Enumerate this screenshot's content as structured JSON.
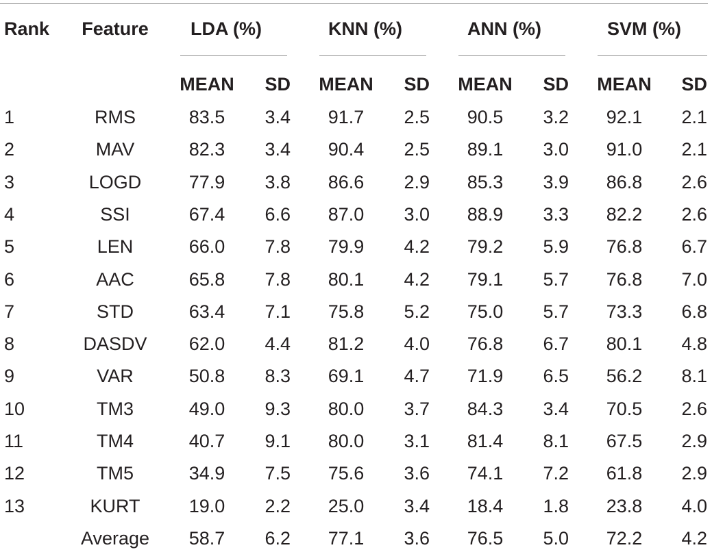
{
  "table": {
    "header": {
      "rank": "Rank",
      "feature": "Feature",
      "groups": [
        "LDA (%)",
        "KNN (%)",
        "ANN (%)",
        "SVM (%)"
      ],
      "sub": [
        "MEAN",
        "SD",
        "MEAN",
        "SD",
        "MEAN",
        "SD",
        "MEAN",
        "SD"
      ]
    },
    "rows": [
      {
        "rank": "1",
        "feature": "RMS",
        "values": [
          "83.5",
          "3.4",
          "91.7",
          "2.5",
          "90.5",
          "3.2",
          "92.1",
          "2.1"
        ]
      },
      {
        "rank": "2",
        "feature": "MAV",
        "values": [
          "82.3",
          "3.4",
          "90.4",
          "2.5",
          "89.1",
          "3.0",
          "91.0",
          "2.1"
        ]
      },
      {
        "rank": "3",
        "feature": "LOGD",
        "values": [
          "77.9",
          "3.8",
          "86.6",
          "2.9",
          "85.3",
          "3.9",
          "86.8",
          "2.6"
        ]
      },
      {
        "rank": "4",
        "feature": "SSI",
        "values": [
          "67.4",
          "6.6",
          "87.0",
          "3.0",
          "88.9",
          "3.3",
          "82.2",
          "2.6"
        ]
      },
      {
        "rank": "5",
        "feature": "LEN",
        "values": [
          "66.0",
          "7.8",
          "79.9",
          "4.2",
          "79.2",
          "5.9",
          "76.8",
          "6.7"
        ]
      },
      {
        "rank": "6",
        "feature": "AAC",
        "values": [
          "65.8",
          "7.8",
          "80.1",
          "4.2",
          "79.1",
          "5.7",
          "76.8",
          "7.0"
        ]
      },
      {
        "rank": "7",
        "feature": "STD",
        "values": [
          "63.4",
          "7.1",
          "75.8",
          "5.2",
          "75.0",
          "5.7",
          "73.3",
          "6.8"
        ]
      },
      {
        "rank": "8",
        "feature": "DASDV",
        "values": [
          "62.0",
          "4.4",
          "81.2",
          "4.0",
          "76.8",
          "6.7",
          "80.1",
          "4.8"
        ]
      },
      {
        "rank": "9",
        "feature": "VAR",
        "values": [
          "50.8",
          "8.3",
          "69.1",
          "4.7",
          "71.9",
          "6.5",
          "56.2",
          "8.1"
        ]
      },
      {
        "rank": "10",
        "feature": "TM3",
        "values": [
          "49.0",
          "9.3",
          "80.0",
          "3.7",
          "84.3",
          "3.4",
          "70.5",
          "2.6"
        ]
      },
      {
        "rank": "11",
        "feature": "TM4",
        "values": [
          "40.7",
          "9.1",
          "80.0",
          "3.1",
          "81.4",
          "8.1",
          "67.5",
          "2.9"
        ]
      },
      {
        "rank": "12",
        "feature": "TM5",
        "values": [
          "34.9",
          "7.5",
          "75.6",
          "3.6",
          "74.1",
          "7.2",
          "61.8",
          "2.9"
        ]
      },
      {
        "rank": "13",
        "feature": "KURT",
        "values": [
          "19.0",
          "2.2",
          "25.0",
          "3.4",
          "18.4",
          "1.8",
          "23.8",
          "4.0"
        ]
      },
      {
        "rank": "",
        "feature": "Average",
        "values": [
          "58.7",
          "6.2",
          "77.1",
          "3.6",
          "76.5",
          "5.0",
          "72.2",
          "4.2"
        ]
      }
    ]
  }
}
